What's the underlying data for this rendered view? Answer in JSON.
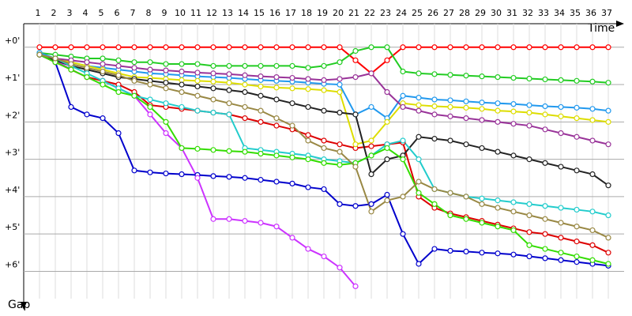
{
  "chart_data": {
    "type": "line",
    "x_label": "Time",
    "y_label": "Gap",
    "x": [
      1,
      2,
      3,
      4,
      5,
      6,
      7,
      8,
      9,
      10,
      11,
      12,
      13,
      14,
      15,
      16,
      17,
      18,
      19,
      20,
      21,
      22,
      23,
      24,
      25,
      26,
      27,
      28,
      29,
      30,
      31,
      32,
      33,
      34,
      35,
      36,
      37
    ],
    "xlim": [
      0,
      37
    ],
    "xticks": [
      1,
      2,
      3,
      4,
      5,
      6,
      7,
      8,
      9,
      10,
      11,
      12,
      13,
      14,
      15,
      16,
      17,
      18,
      19,
      20,
      21,
      22,
      23,
      24,
      25,
      26,
      27,
      28,
      29,
      30,
      31,
      32,
      33,
      34,
      35,
      36,
      37
    ],
    "ylim": [
      -0.63,
      6.9
    ],
    "yticks": [
      {
        "value": 0,
        "label": "+0'"
      },
      {
        "value": 1,
        "label": "+1'"
      },
      {
        "value": 2,
        "label": "+2'"
      },
      {
        "value": 3,
        "label": "+3'"
      },
      {
        "value": 4,
        "label": "+4'"
      },
      {
        "value": 5,
        "label": "+5'"
      },
      {
        "value": 6,
        "label": "+6'"
      }
    ],
    "inverted_y": true,
    "grid": true,
    "series": [
      {
        "color": "#ff0000",
        "values": [
          0,
          0,
          0,
          0,
          0,
          0,
          0,
          0,
          0,
          0,
          0,
          0,
          0,
          0,
          0,
          0,
          0,
          0,
          0,
          0,
          0.35,
          0.7,
          0.35,
          0,
          0,
          0,
          0,
          0,
          0,
          0,
          0,
          0,
          0,
          0,
          0,
          0,
          0
        ]
      },
      {
        "color": "#22cc22",
        "values": [
          0.15,
          0.2,
          0.25,
          0.3,
          0.3,
          0.35,
          0.4,
          0.4,
          0.45,
          0.45,
          0.45,
          0.5,
          0.5,
          0.5,
          0.5,
          0.5,
          0.5,
          0.55,
          0.5,
          0.4,
          0.1,
          0,
          0,
          0.65,
          0.7,
          0.72,
          0.74,
          0.76,
          0.78,
          0.8,
          0.82,
          0.84,
          0.86,
          0.88,
          0.9,
          0.92,
          0.95
        ]
      },
      {
        "color": "#0000cc",
        "values": [
          0.2,
          0.4,
          1.6,
          1.8,
          1.9,
          2.3,
          3.3,
          3.35,
          3.38,
          3.4,
          3.42,
          3.45,
          3.47,
          3.5,
          3.55,
          3.6,
          3.65,
          3.75,
          3.8,
          4.2,
          4.25,
          4.2,
          3.95,
          5.0,
          5.8,
          5.4,
          5.45,
          5.47,
          5.5,
          5.52,
          5.55,
          5.6,
          5.65,
          5.7,
          5.75,
          5.8,
          5.85
        ]
      },
      {
        "color": "#cc33ff",
        "values": [
          0.2,
          0.35,
          0.6,
          0.8,
          0.9,
          1.1,
          1.3,
          1.8,
          2.3,
          2.7,
          3.5,
          4.6,
          4.6,
          4.65,
          4.7,
          4.8,
          5.1,
          5.4,
          5.6,
          5.9,
          6.4,
          null,
          null,
          null,
          null,
          null,
          null,
          null,
          null,
          null,
          null,
          null,
          null,
          null,
          null,
          null,
          null
        ]
      },
      {
        "color": "#dd0000",
        "values": [
          0.2,
          0.4,
          0.6,
          0.8,
          0.9,
          1.0,
          1.2,
          1.55,
          1.6,
          1.65,
          1.7,
          1.75,
          1.8,
          1.9,
          2.0,
          2.1,
          2.2,
          2.35,
          2.5,
          2.6,
          2.7,
          2.65,
          2.6,
          2.55,
          4.0,
          4.3,
          4.45,
          4.55,
          4.65,
          4.75,
          4.85,
          4.95,
          5.0,
          5.1,
          5.2,
          5.3,
          5.5
        ]
      },
      {
        "color": "#2299ee",
        "values": [
          0.15,
          0.3,
          0.4,
          0.5,
          0.55,
          0.6,
          0.65,
          0.7,
          0.72,
          0.75,
          0.78,
          0.8,
          0.82,
          0.85,
          0.88,
          0.9,
          0.92,
          0.95,
          0.98,
          1.0,
          1.8,
          1.6,
          1.9,
          1.3,
          1.35,
          1.4,
          1.42,
          1.45,
          1.48,
          1.5,
          1.52,
          1.55,
          1.58,
          1.6,
          1.62,
          1.65,
          1.7
        ]
      },
      {
        "color": "#dddd00",
        "values": [
          0.2,
          0.3,
          0.4,
          0.5,
          0.6,
          0.7,
          0.8,
          0.82,
          0.85,
          0.88,
          0.9,
          0.92,
          0.95,
          1.0,
          1.05,
          1.08,
          1.1,
          1.12,
          1.15,
          1.2,
          2.6,
          2.5,
          2.0,
          1.5,
          1.55,
          1.58,
          1.6,
          1.62,
          1.65,
          1.7,
          1.72,
          1.75,
          1.8,
          1.85,
          1.9,
          1.95,
          2.0
        ]
      },
      {
        "color": "#993399",
        "values": [
          0.2,
          0.3,
          0.35,
          0.4,
          0.45,
          0.5,
          0.55,
          0.6,
          0.62,
          0.65,
          0.68,
          0.7,
          0.72,
          0.75,
          0.78,
          0.8,
          0.82,
          0.85,
          0.88,
          0.85,
          0.8,
          0.7,
          1.2,
          1.6,
          1.7,
          1.8,
          1.85,
          1.9,
          1.95,
          2.0,
          2.05,
          2.1,
          2.2,
          2.3,
          2.4,
          2.5,
          2.6
        ]
      },
      {
        "color": "#222222",
        "values": [
          0.2,
          0.35,
          0.5,
          0.6,
          0.7,
          0.8,
          0.85,
          0.9,
          0.95,
          1.0,
          1.05,
          1.1,
          1.15,
          1.2,
          1.3,
          1.4,
          1.5,
          1.6,
          1.7,
          1.75,
          1.8,
          3.4,
          3.0,
          2.9,
          2.4,
          2.45,
          2.5,
          2.6,
          2.7,
          2.8,
          2.9,
          3.0,
          3.1,
          3.2,
          3.3,
          3.4,
          3.7
        ]
      },
      {
        "color": "#22cccc",
        "values": [
          0.2,
          0.3,
          0.5,
          0.7,
          0.9,
          1.1,
          1.3,
          1.4,
          1.5,
          1.6,
          1.7,
          1.75,
          1.8,
          2.7,
          2.75,
          2.8,
          2.85,
          2.9,
          3.0,
          3.05,
          3.1,
          2.9,
          2.6,
          2.5,
          3.0,
          3.8,
          3.9,
          4.0,
          4.05,
          4.1,
          4.15,
          4.2,
          4.25,
          4.3,
          4.35,
          4.4,
          4.5
        ]
      },
      {
        "color": "#33dd00",
        "values": [
          0.2,
          0.4,
          0.6,
          0.8,
          1.0,
          1.2,
          1.3,
          1.6,
          2.0,
          2.7,
          2.72,
          2.75,
          2.78,
          2.8,
          2.85,
          2.9,
          2.95,
          3.0,
          3.1,
          3.15,
          3.1,
          2.9,
          2.7,
          3.0,
          3.9,
          4.2,
          4.5,
          4.6,
          4.7,
          4.8,
          4.9,
          5.3,
          5.4,
          5.5,
          5.6,
          5.7,
          5.8
        ]
      },
      {
        "color": "#998844",
        "values": [
          0.2,
          0.3,
          0.45,
          0.55,
          0.65,
          0.75,
          0.9,
          1.0,
          1.1,
          1.2,
          1.3,
          1.4,
          1.5,
          1.6,
          1.7,
          1.9,
          2.1,
          2.5,
          2.7,
          2.8,
          3.2,
          4.4,
          4.1,
          4.0,
          3.6,
          3.8,
          3.9,
          4.0,
          4.2,
          4.3,
          4.4,
          4.5,
          4.6,
          4.7,
          4.8,
          4.9,
          5.1
        ]
      }
    ]
  }
}
